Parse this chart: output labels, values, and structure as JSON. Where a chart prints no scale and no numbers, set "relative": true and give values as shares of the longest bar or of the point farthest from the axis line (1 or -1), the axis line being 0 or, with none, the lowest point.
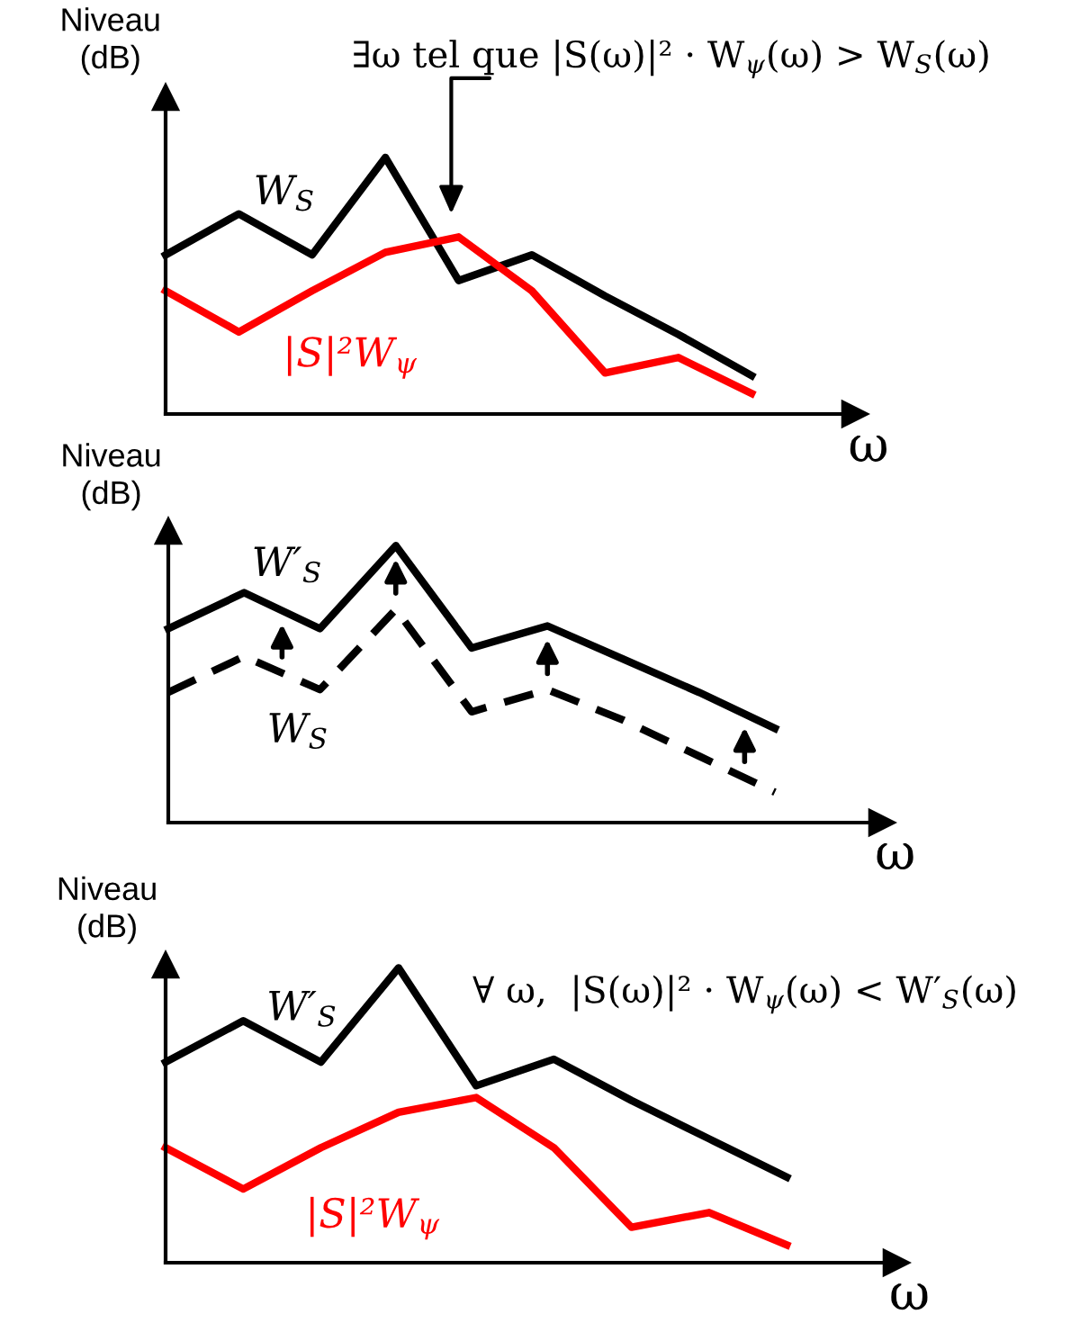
{
  "chart_data": [
    {
      "type": "line",
      "relative": true,
      "xlabel": "ω",
      "ylabel": "Niveau\n(dB)",
      "categories": [
        null,
        null,
        null,
        null,
        null,
        null,
        null,
        null,
        null
      ],
      "annotations": [
        "∃ω tel que |S(ω)|² · W$_{ψ}$(ω) > W$_{S}$(ω)"
      ],
      "series": [
        {
          "name": "W$_{S}$",
          "color": "#000000",
          "line_style": "solid",
          "values": [
            0.62,
            0.78,
            0.62,
            1,
            0.52,
            0.62,
            0.46,
            0.31,
            0.15
          ]
        },
        {
          "name": "|S|²W$_{ψ}$",
          "color": "#ff0000",
          "line_style": "solid",
          "values": [
            0.48,
            0.32,
            0.48,
            0.63,
            0.69,
            0.48,
            0.16,
            0.22,
            0.08
          ]
        }
      ]
    },
    {
      "type": "line",
      "relative": true,
      "xlabel": "ω",
      "ylabel": "Niveau\n(dB)",
      "categories": [
        null,
        null,
        null,
        null,
        null,
        null,
        null,
        null,
        null
      ],
      "series": [
        {
          "name": "W′$_{S}$",
          "color": "#000000",
          "line_style": "solid",
          "values": [
            0.7,
            0.83,
            0.7,
            1,
            0.63,
            0.71,
            0.59,
            0.47,
            0.34
          ]
        },
        {
          "name": "W$_{S}$",
          "color": "#000000",
          "line_style": "dashed",
          "values": [
            0.47,
            0.6,
            0.48,
            0.77,
            0.4,
            0.48,
            0.37,
            0.24,
            0.11
          ]
        }
      ]
    },
    {
      "type": "line",
      "relative": true,
      "xlabel": "ω",
      "ylabel": "Niveau\n(dB)",
      "categories": [
        null,
        null,
        null,
        null,
        null,
        null,
        null,
        null,
        null
      ],
      "annotations": [
        "∀ ω,  |S(ω)|² · W$_{ψ}$(ω) < W′$_{S}$(ω)"
      ],
      "series": [
        {
          "name": "W′$_{S}$",
          "color": "#000000",
          "line_style": "solid",
          "values": [
            0.68,
            0.82,
            0.68,
            1,
            0.6,
            0.69,
            0.55,
            0.42,
            0.29
          ]
        },
        {
          "name": "|S|²W$_{ψ}$",
          "color": "#ff0000",
          "line_style": "solid",
          "values": [
            0.39,
            0.25,
            0.39,
            0.51,
            0.56,
            0.39,
            0.12,
            0.17,
            0.06
          ]
        }
      ]
    }
  ]
}
